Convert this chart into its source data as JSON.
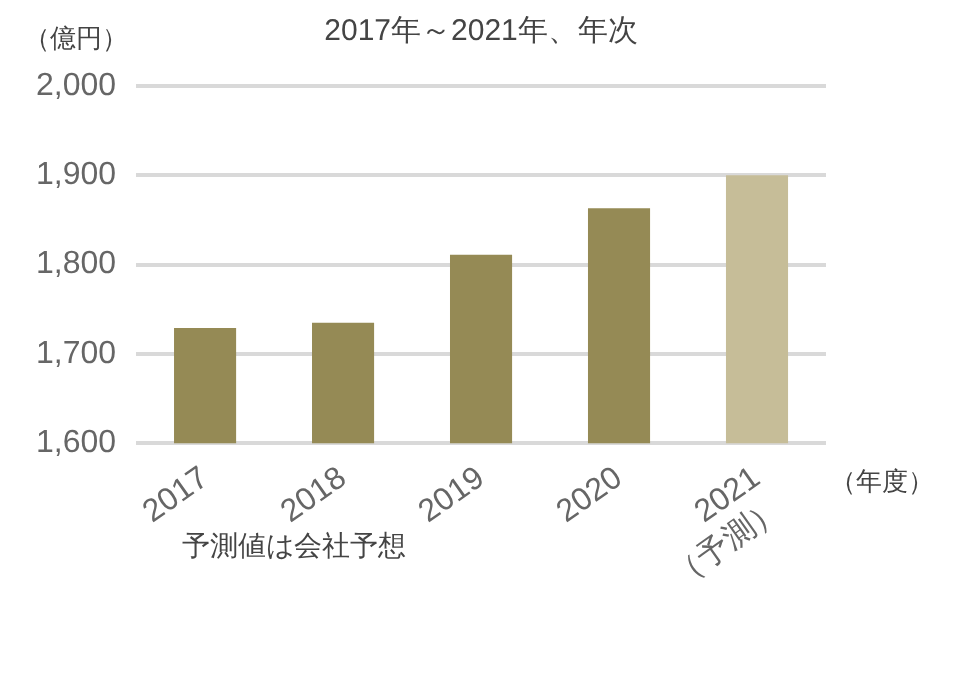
{
  "chart_data": {
    "type": "bar",
    "title": "2017年～2021年、年次",
    "ylabel": "（億円）",
    "xlabel": "（年度）",
    "categories": [
      "2017",
      "2018",
      "2019",
      "2020",
      "2021\n（予測）"
    ],
    "values": [
      1729,
      1735,
      1811,
      1863,
      1900
    ],
    "colors": [
      "#958a55",
      "#958a55",
      "#958a55",
      "#958a55",
      "#c6bd98"
    ],
    "ylim": [
      1600,
      2000
    ],
    "yticks": [
      {
        "value": 1600,
        "label": "1,600"
      },
      {
        "value": 1700,
        "label": "1,700"
      },
      {
        "value": 1800,
        "label": "1,800"
      },
      {
        "value": 1900,
        "label": "1,900"
      },
      {
        "value": 2000,
        "label": "2,000"
      }
    ],
    "grid": "y",
    "annotations": [
      "予測値は会社予想"
    ]
  }
}
